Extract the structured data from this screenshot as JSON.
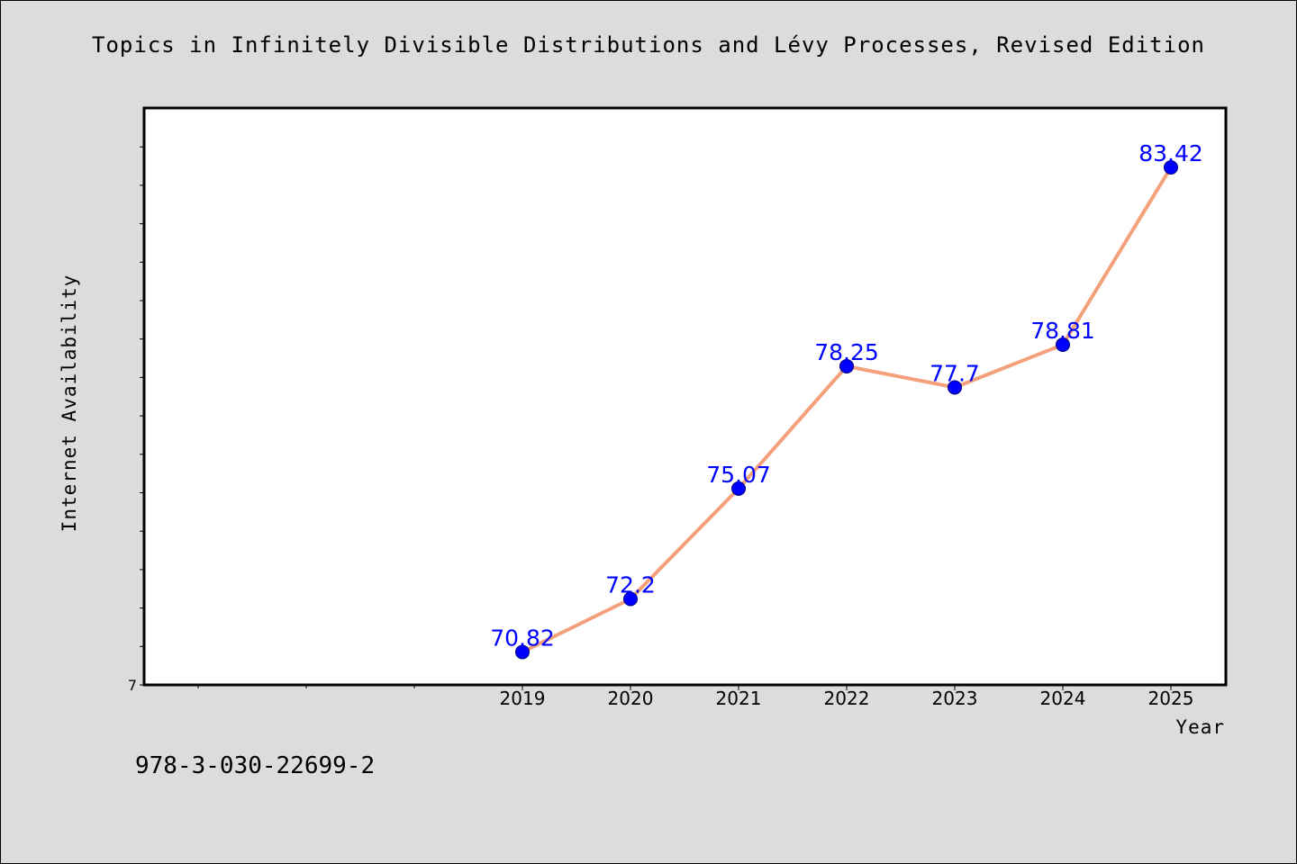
{
  "colors": {
    "background": "#dcdcdc",
    "plot_background": "#ffffff",
    "line": "#f4a07a",
    "marker": "#0000ff",
    "data_label": "#0000ff"
  },
  "footer": {
    "isbn": "978-3-030-22699-2"
  },
  "chart_data": {
    "type": "line",
    "title": "Topics in Infinitely Divisible Distributions and Lévy Processes, Revised Edition",
    "xlabel": "Year",
    "ylabel": "Internet Availability",
    "x": [
      "2019",
      "2020",
      "2021",
      "2022",
      "2023",
      "2024",
      "2025"
    ],
    "series": [
      {
        "values": [
          70.82,
          72.2,
          75.07,
          78.25,
          77.7,
          78.81,
          83.42
        ],
        "data_labels": [
          "70.82",
          "72.2",
          "75.07",
          "78.25",
          "77.7",
          "78.81",
          "83.42"
        ]
      }
    ],
    "y_ticks_labeled": [
      "7"
    ],
    "xlim_slots": [
      -3,
      6
    ],
    "grid": false,
    "legend": "none"
  }
}
